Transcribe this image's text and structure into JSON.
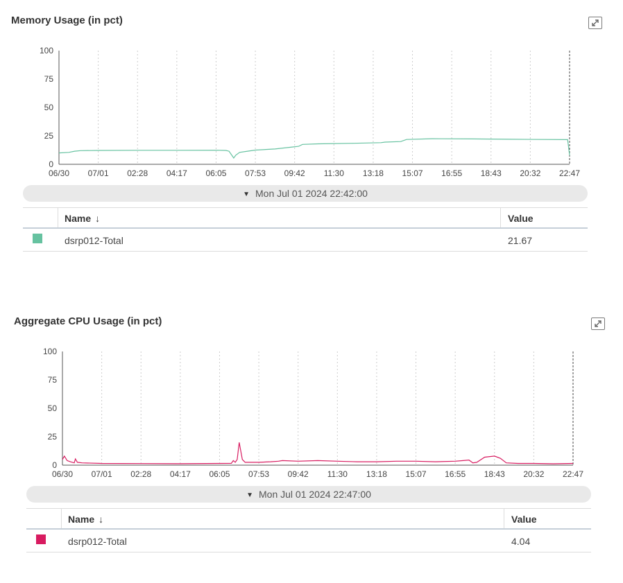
{
  "panels": [
    {
      "title": "Memory Usage (in pct)",
      "timestamp": "Mon Jul 01 2024 22:42:00",
      "table": {
        "headers": {
          "name": "Name",
          "sort_indicator": "↓",
          "value": "Value"
        },
        "rows": [
          {
            "name": "dsrp012-Total",
            "value": "21.67",
            "color": "#66c2a0"
          }
        ]
      }
    },
    {
      "title": "Aggregate CPU Usage (in pct)",
      "timestamp": "Mon Jul 01 2024 22:47:00",
      "table": {
        "headers": {
          "name": "Name",
          "sort_indicator": "↓",
          "value": "Value"
        },
        "rows": [
          {
            "name": "dsrp012-Total",
            "value": "4.04",
            "color": "#d81b60"
          }
        ]
      }
    }
  ],
  "icons": {
    "expand": "expand-icon",
    "dropdown": "triangle-down-icon",
    "sort": "arrow-down-icon"
  },
  "chart_data": [
    {
      "type": "line",
      "title": "Memory Usage (in pct)",
      "x_tick_labels": [
        "06/30",
        "07/01",
        "02:28",
        "04:17",
        "06:05",
        "07:53",
        "09:42",
        "11:30",
        "13:18",
        "15:07",
        "16:55",
        "18:43",
        "20:32",
        "22:47"
      ],
      "y_ticks": [
        0,
        25,
        50,
        75,
        100
      ],
      "ylim": [
        0,
        100
      ],
      "xlim": [
        0,
        13
      ],
      "grid": "vertical dashed",
      "cursor_x": 13,
      "series": [
        {
          "name": "dsrp012-Total",
          "color": "#66c2a0",
          "points": [
            [
              0.0,
              10
            ],
            [
              0.25,
              10.5
            ],
            [
              0.4,
              11.5
            ],
            [
              0.55,
              12
            ],
            [
              1.0,
              12.2
            ],
            [
              2.0,
              12.3
            ],
            [
              3.0,
              12.3
            ],
            [
              4.0,
              12.4
            ],
            [
              4.25,
              12.2
            ],
            [
              4.33,
              11.5
            ],
            [
              4.4,
              8
            ],
            [
              4.45,
              5.5
            ],
            [
              4.5,
              8
            ],
            [
              4.6,
              10.5
            ],
            [
              4.8,
              11.5
            ],
            [
              5.0,
              12.5
            ],
            [
              5.5,
              13.5
            ],
            [
              5.9,
              15
            ],
            [
              6.1,
              15.8
            ],
            [
              6.2,
              17.5
            ],
            [
              6.6,
              18
            ],
            [
              7.5,
              18.5
            ],
            [
              8.2,
              19
            ],
            [
              8.3,
              19.5
            ],
            [
              8.7,
              20
            ],
            [
              8.85,
              21.8
            ],
            [
              9.5,
              22.5
            ],
            [
              10.5,
              22.3
            ],
            [
              11.5,
              22
            ],
            [
              12.95,
              21.7
            ],
            [
              13.0,
              8
            ]
          ]
        }
      ]
    },
    {
      "type": "line",
      "title": "Aggregate CPU Usage (in pct)",
      "x_tick_labels": [
        "06/30",
        "07/01",
        "02:28",
        "04:17",
        "06:05",
        "07:53",
        "09:42",
        "11:30",
        "13:18",
        "15:07",
        "16:55",
        "18:43",
        "20:32",
        "22:47"
      ],
      "y_ticks": [
        0,
        25,
        50,
        75,
        100
      ],
      "ylim": [
        0,
        100
      ],
      "xlim": [
        0,
        13
      ],
      "grid": "vertical dashed",
      "cursor_x": 13,
      "series": [
        {
          "name": "dsrp012-Total",
          "color": "#d81b60",
          "points": [
            [
              0.0,
              5
            ],
            [
              0.05,
              8
            ],
            [
              0.12,
              4
            ],
            [
              0.2,
              3
            ],
            [
              0.3,
              2
            ],
            [
              0.33,
              5.5
            ],
            [
              0.38,
              2.5
            ],
            [
              0.5,
              2
            ],
            [
              1.0,
              1.5
            ],
            [
              2.0,
              1.4
            ],
            [
              3.0,
              1.3
            ],
            [
              4.0,
              1.5
            ],
            [
              4.3,
              1.6
            ],
            [
              4.35,
              4
            ],
            [
              4.4,
              2.5
            ],
            [
              4.45,
              5
            ],
            [
              4.5,
              20
            ],
            [
              4.58,
              5
            ],
            [
              4.65,
              2.5
            ],
            [
              5.0,
              2.5
            ],
            [
              5.3,
              3
            ],
            [
              5.5,
              3.5
            ],
            [
              5.6,
              4
            ],
            [
              6.0,
              3.5
            ],
            [
              6.5,
              4
            ],
            [
              7.0,
              3.5
            ],
            [
              7.5,
              3
            ],
            [
              8.0,
              3
            ],
            [
              8.5,
              3.5
            ],
            [
              9.0,
              3.5
            ],
            [
              9.5,
              3
            ],
            [
              10.0,
              3.5
            ],
            [
              10.2,
              4
            ],
            [
              10.35,
              4.5
            ],
            [
              10.45,
              2
            ],
            [
              10.55,
              2.5
            ],
            [
              10.75,
              7
            ],
            [
              11.0,
              8
            ],
            [
              11.15,
              6
            ],
            [
              11.3,
              2
            ],
            [
              11.6,
              1.5
            ],
            [
              12.0,
              1.5
            ],
            [
              12.5,
              1.2
            ],
            [
              13.0,
              1.5
            ]
          ]
        }
      ]
    }
  ]
}
